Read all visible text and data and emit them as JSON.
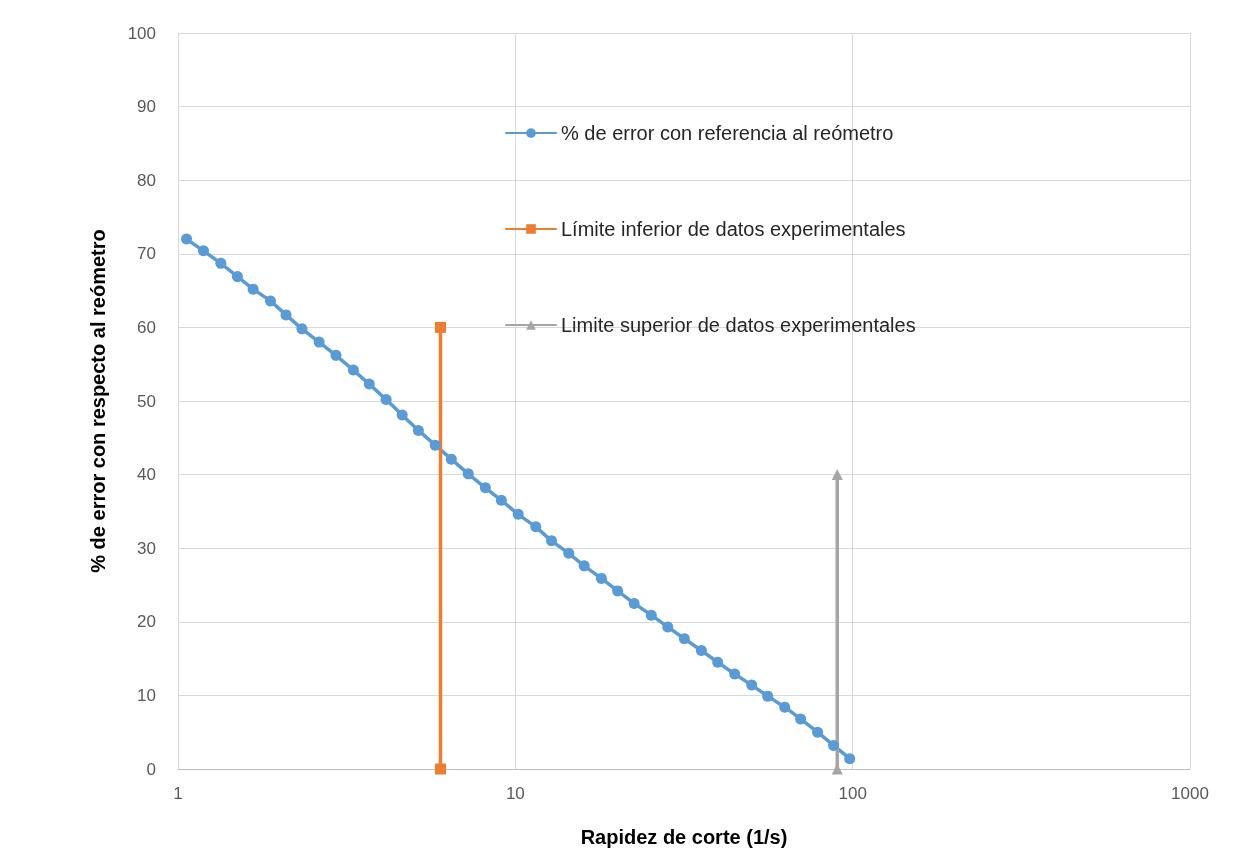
{
  "chart_data": {
    "type": "line",
    "xlabel": "Rapidez de corte (1/s)",
    "ylabel": "% de error con respecto al reómetro",
    "log": "x",
    "xlim": [
      1,
      1000
    ],
    "xticks": [
      1,
      10,
      100,
      1000
    ],
    "ylim": [
      0,
      100
    ],
    "yticks": [
      0,
      10,
      20,
      30,
      40,
      50,
      60,
      70,
      80,
      90,
      100
    ],
    "grid": true,
    "legend": "right",
    "line_style": "solid",
    "series": [
      {
        "name": "% de error con referencia al reómetro",
        "color": "#5b9bd5",
        "marker": "circle",
        "x": [
          1.06,
          1.19,
          1.34,
          1.5,
          1.67,
          1.88,
          2.09,
          2.33,
          2.62,
          2.94,
          3.31,
          3.69,
          4.14,
          4.62,
          5.16,
          5.79,
          6.46,
          7.25,
          8.15,
          9.09,
          10.2,
          11.5,
          12.8,
          14.4,
          16.0,
          18.0,
          20.1,
          22.5,
          25.3,
          28.3,
          31.7,
          35.6,
          39.8,
          44.7,
          50.2,
          56.0,
          62.9,
          70.1,
          78.7,
          87.8,
          98.0
        ],
        "values": [
          72,
          70.4,
          68.7,
          66.9,
          65.2,
          63.6,
          61.7,
          59.8,
          58,
          56.2,
          54.2,
          52.3,
          50.2,
          48.1,
          46,
          44,
          42.1,
          40.1,
          38.2,
          36.5,
          34.6,
          32.9,
          31,
          29.3,
          27.6,
          25.9,
          24.2,
          22.5,
          20.9,
          19.3,
          17.7,
          16.1,
          14.5,
          12.9,
          11.4,
          9.9,
          8.4,
          6.8,
          5,
          3.2,
          1.4
        ]
      },
      {
        "name": "Límite inferior de datos experimentales",
        "color": "#ed7d31",
        "marker": "square",
        "x": [
          6,
          6
        ],
        "values": [
          0,
          60
        ]
      },
      {
        "name": "Limite superior de datos experimentales",
        "color": "#a5a5a5",
        "marker": "triangle",
        "x": [
          90,
          90
        ],
        "values": [
          0,
          40
        ]
      }
    ]
  }
}
